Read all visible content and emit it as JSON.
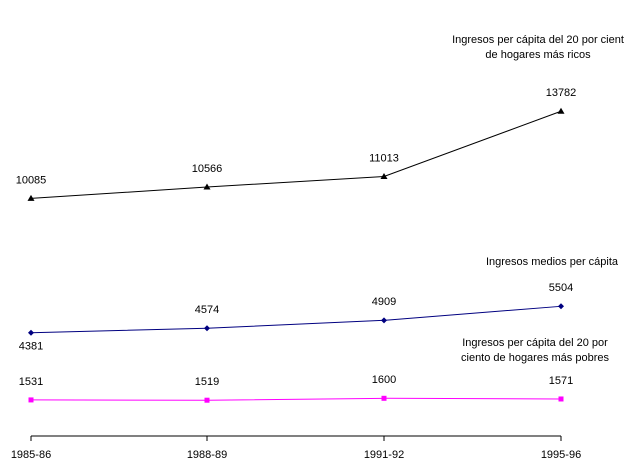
{
  "chart_data": {
    "type": "line",
    "categories": [
      "1985-86",
      "1988-89",
      "1991-92",
      "1995-96"
    ],
    "series": [
      {
        "name": "Ingresos per cápita del 20 por cient\nde hogares más ricos",
        "color": "#000000",
        "marker": "triangle",
        "values": [
          10085,
          10566,
          11013,
          13782
        ]
      },
      {
        "name": "Ingresos medios per cápita",
        "color": "#000080",
        "marker": "diamond",
        "values": [
          4381,
          4574,
          4909,
          5504
        ]
      },
      {
        "name": "Ingresos per cápita del 20 por\nciento de hogares más pobres",
        "color": "#ff00ff",
        "marker": "square",
        "values": [
          1531,
          1519,
          1600,
          1571
        ]
      }
    ],
    "ylim": [
      0,
      16000
    ]
  }
}
